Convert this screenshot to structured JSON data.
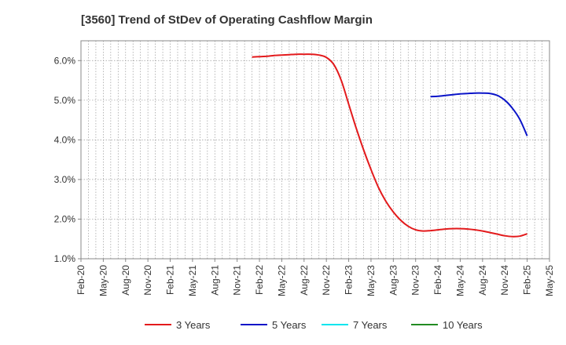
{
  "chart_data": {
    "type": "line",
    "title": "[3560]  Trend of StDev of Operating Cashflow Margin",
    "xlabel": "",
    "ylabel": "",
    "ylim": [
      1.0,
      6.5
    ],
    "yticks": [
      "1.0%",
      "2.0%",
      "3.0%",
      "4.0%",
      "5.0%",
      "6.0%"
    ],
    "ytick_values": [
      1.0,
      2.0,
      3.0,
      4.0,
      5.0,
      6.0
    ],
    "xlim": [
      "2020-02",
      "2025-05"
    ],
    "xticks": [
      "Feb-20",
      "May-20",
      "Aug-20",
      "Nov-20",
      "Feb-21",
      "May-21",
      "Aug-21",
      "Nov-21",
      "Feb-22",
      "May-22",
      "Aug-22",
      "Nov-22",
      "Feb-23",
      "May-23",
      "Aug-23",
      "Nov-23",
      "Feb-24",
      "May-24",
      "Aug-24",
      "Nov-24",
      "Feb-25",
      "May-25"
    ],
    "xtick_dates": [
      "2020-02",
      "2020-05",
      "2020-08",
      "2020-11",
      "2021-02",
      "2021-05",
      "2021-08",
      "2021-11",
      "2022-02",
      "2022-05",
      "2022-08",
      "2022-11",
      "2023-02",
      "2023-05",
      "2023-08",
      "2023-11",
      "2024-02",
      "2024-05",
      "2024-08",
      "2024-11",
      "2025-02",
      "2025-05"
    ],
    "grid": true,
    "legend_position": "bottom",
    "series": [
      {
        "name": "3 Years",
        "color": "#e31a1c",
        "points": [
          [
            "2022-01",
            6.09
          ],
          [
            "2022-02",
            6.1
          ],
          [
            "2022-03",
            6.11
          ],
          [
            "2022-04",
            6.13
          ],
          [
            "2022-05",
            6.14
          ],
          [
            "2022-06",
            6.15
          ],
          [
            "2022-07",
            6.16
          ],
          [
            "2022-08",
            6.16
          ],
          [
            "2022-09",
            6.16
          ],
          [
            "2022-10",
            6.14
          ],
          [
            "2022-11",
            6.08
          ],
          [
            "2022-12",
            5.9
          ],
          [
            "2023-01",
            5.5
          ],
          [
            "2023-02",
            4.9
          ],
          [
            "2023-03",
            4.3
          ],
          [
            "2023-04",
            3.75
          ],
          [
            "2023-05",
            3.25
          ],
          [
            "2023-06",
            2.8
          ],
          [
            "2023-07",
            2.45
          ],
          [
            "2023-08",
            2.18
          ],
          [
            "2023-09",
            1.97
          ],
          [
            "2023-10",
            1.82
          ],
          [
            "2023-11",
            1.73
          ],
          [
            "2023-12",
            1.7
          ],
          [
            "2024-01",
            1.71
          ],
          [
            "2024-02",
            1.73
          ],
          [
            "2024-03",
            1.75
          ],
          [
            "2024-04",
            1.76
          ],
          [
            "2024-05",
            1.76
          ],
          [
            "2024-06",
            1.75
          ],
          [
            "2024-07",
            1.73
          ],
          [
            "2024-08",
            1.7
          ],
          [
            "2024-09",
            1.66
          ],
          [
            "2024-10",
            1.62
          ],
          [
            "2024-11",
            1.58
          ],
          [
            "2024-12",
            1.56
          ],
          [
            "2025-01",
            1.57
          ],
          [
            "2025-02",
            1.63
          ]
        ]
      },
      {
        "name": "5 Years",
        "color": "#0a14c8",
        "points": [
          [
            "2024-01",
            5.09
          ],
          [
            "2024-02",
            5.1
          ],
          [
            "2024-03",
            5.12
          ],
          [
            "2024-04",
            5.14
          ],
          [
            "2024-05",
            5.16
          ],
          [
            "2024-06",
            5.17
          ],
          [
            "2024-07",
            5.18
          ],
          [
            "2024-08",
            5.18
          ],
          [
            "2024-09",
            5.17
          ],
          [
            "2024-10",
            5.12
          ],
          [
            "2024-11",
            5.0
          ],
          [
            "2024-12",
            4.8
          ],
          [
            "2025-01",
            4.52
          ],
          [
            "2025-02",
            4.1
          ]
        ]
      },
      {
        "name": "7 Years",
        "color": "#00e5ee",
        "points": []
      },
      {
        "name": "10 Years",
        "color": "#228b22",
        "points": []
      }
    ]
  }
}
